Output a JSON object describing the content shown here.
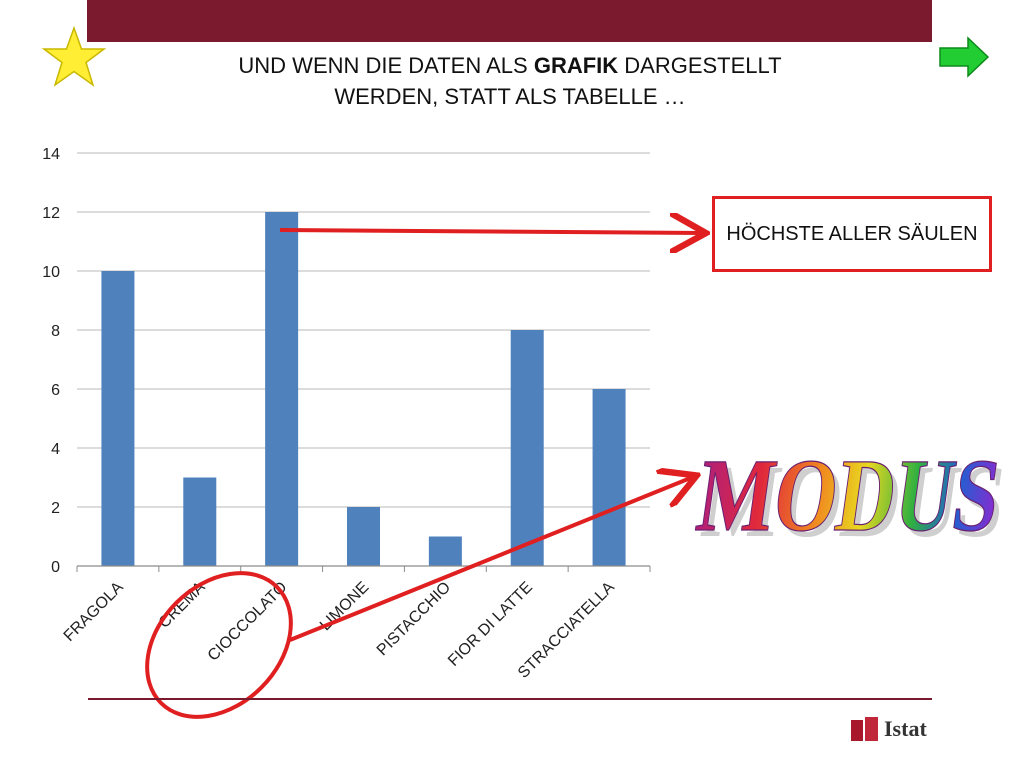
{
  "slide": {
    "title_line1_a": "UND WENN DIE DATEN ALS ",
    "title_line1_bold": "GRAFIK",
    "title_line1_b": " DARGESTELLT",
    "title_line2": "WERDEN, STATT ALS TABELLE …",
    "callout": "HÖCHSTE ALLER SÄULEN",
    "wordart": "MODUS",
    "logo": "Istat",
    "star_icon": "star-icon",
    "next_icon": "green-arrow-right-icon"
  },
  "colors": {
    "top_bar": "#7b1a2f",
    "bar": "#4f81bd",
    "highlight": "#e02020",
    "star": "#ffee33",
    "next_arrow": "#22cc33"
  },
  "chart_data": {
    "type": "bar",
    "categories": [
      "FRAGOLA",
      "CREMA",
      "CIOCCOLATO",
      "LIMONE",
      "PISTACCHIO",
      "FIOR DI LATTE",
      "STRACCIATELLA"
    ],
    "values": [
      10,
      3,
      12,
      2,
      1,
      8,
      6
    ],
    "ylim": [
      0,
      14
    ],
    "yticks": [
      0,
      2,
      4,
      6,
      8,
      10,
      12,
      14
    ],
    "grid": true,
    "title": "",
    "xlabel": "",
    "ylabel": ""
  }
}
